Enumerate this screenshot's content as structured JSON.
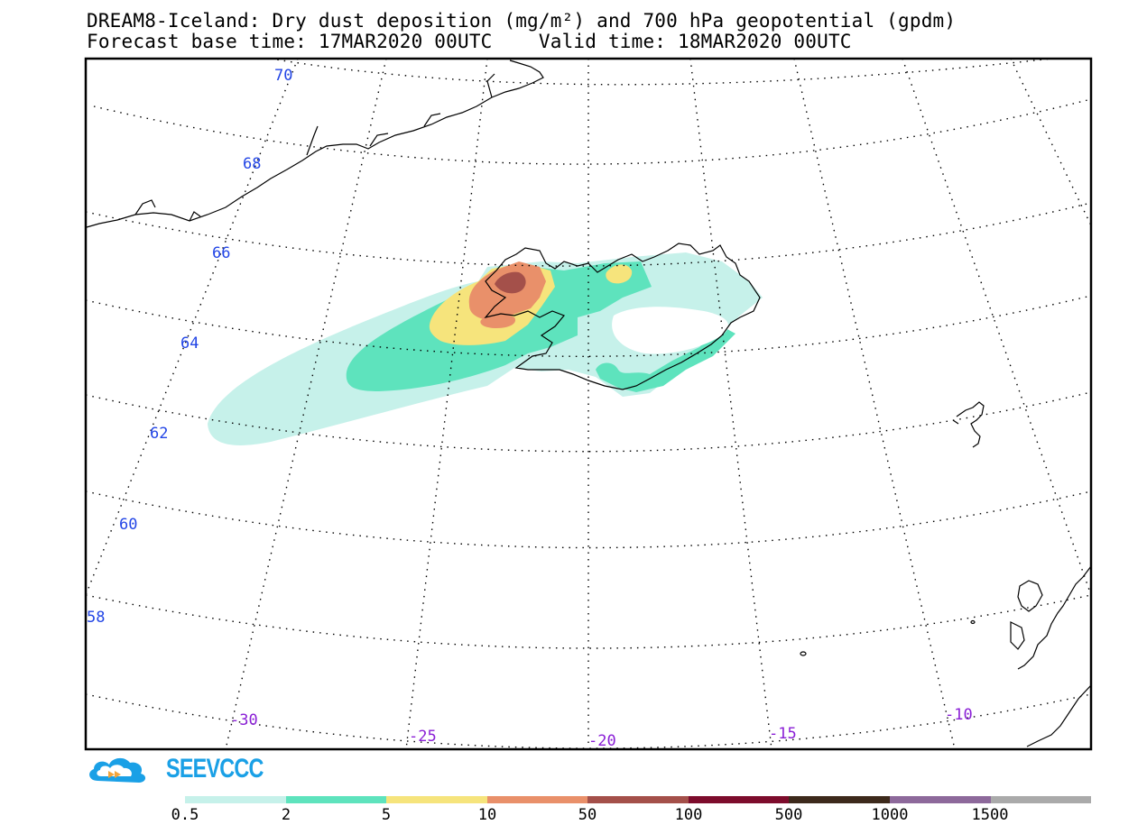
{
  "title": {
    "line1": "DREAM8-Iceland: Dry dust deposition (mg/m²) and 700 hPa geopotential (gpdm)",
    "line2": "Forecast base time: 17MAR2020 00UTC    Valid time: 18MAR2020 00UTC"
  },
  "map": {
    "lat_labels": [
      "70",
      "68",
      "66",
      "64",
      "62",
      "60",
      "58"
    ],
    "lon_labels": [
      "-30",
      "-25",
      "-20",
      "-15",
      "-10"
    ],
    "colors": {
      "land_outline": "#000000",
      "graticule": "#000000",
      "lat_label": "#2346e6",
      "lon_label": "#8a1fd6"
    }
  },
  "logo": {
    "text": "SEEVCCC",
    "color": "#1aa0e6",
    "icon": "cloud-logo-icon"
  },
  "colorbar": {
    "labels": [
      "0.5",
      "2",
      "5",
      "10",
      "50",
      "100",
      "500",
      "1000",
      "1500"
    ],
    "colors": [
      "#c6f1ea",
      "#5ee3bd",
      "#f6e47c",
      "#e9906a",
      "#a4504a",
      "#7d0c2c",
      "#3d2a1c",
      "#8d699b",
      "#aaaaaa"
    ]
  }
}
